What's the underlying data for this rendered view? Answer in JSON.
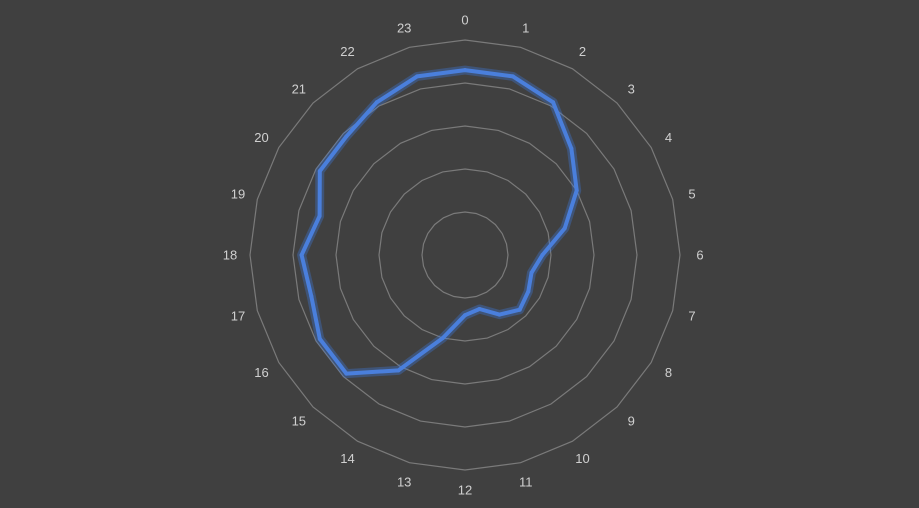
{
  "chart_data": {
    "type": "radar",
    "categories": [
      "0",
      "1",
      "2",
      "3",
      "4",
      "5",
      "6",
      "7",
      "8",
      "9",
      "10",
      "11",
      "12",
      "13",
      "14",
      "15",
      "16",
      "17",
      "18",
      "19",
      "20",
      "21",
      "22",
      "23"
    ],
    "series": [
      {
        "values": [
          4.3,
          4.3,
          4.1,
          3.5,
          3.0,
          2.4,
          1.8,
          1.6,
          1.7,
          1.8,
          1.6,
          1.3,
          1.4,
          2.0,
          3.1,
          3.9,
          3.9,
          3.7,
          3.8,
          3.5,
          3.9,
          3.9,
          4.1,
          4.3
        ],
        "color": "#4a7fdc"
      }
    ],
    "rlim": [
      0,
      5
    ],
    "ring_count": 5,
    "grid": true,
    "legend": "none",
    "background": "#404040"
  }
}
